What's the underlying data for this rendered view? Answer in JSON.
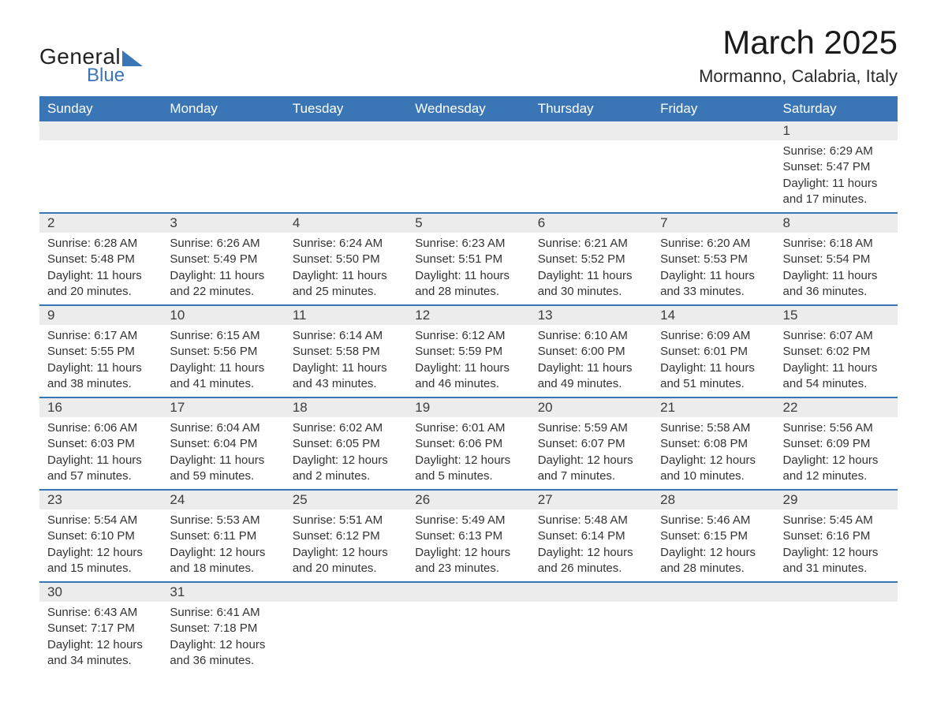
{
  "logo": {
    "general": "General",
    "blue": "Blue"
  },
  "title": "March 2025",
  "location": "Mormanno, Calabria, Italy",
  "colors": {
    "header_bg": "#3a76b6",
    "header_text": "#ffffff",
    "daynum_bg": "#ececec",
    "text": "#333333",
    "border": "#3a76b6",
    "page_bg": "#ffffff"
  },
  "typography": {
    "title_fontsize": 42,
    "location_fontsize": 22,
    "dayhead_fontsize": 17,
    "daynum_fontsize": 17,
    "body_fontsize": 15
  },
  "day_headers": [
    "Sunday",
    "Monday",
    "Tuesday",
    "Wednesday",
    "Thursday",
    "Friday",
    "Saturday"
  ],
  "weeks": [
    [
      {
        "n": "",
        "sr": "",
        "ss": "",
        "dl1": "",
        "dl2": ""
      },
      {
        "n": "",
        "sr": "",
        "ss": "",
        "dl1": "",
        "dl2": ""
      },
      {
        "n": "",
        "sr": "",
        "ss": "",
        "dl1": "",
        "dl2": ""
      },
      {
        "n": "",
        "sr": "",
        "ss": "",
        "dl1": "",
        "dl2": ""
      },
      {
        "n": "",
        "sr": "",
        "ss": "",
        "dl1": "",
        "dl2": ""
      },
      {
        "n": "",
        "sr": "",
        "ss": "",
        "dl1": "",
        "dl2": ""
      },
      {
        "n": "1",
        "sr": "Sunrise: 6:29 AM",
        "ss": "Sunset: 5:47 PM",
        "dl1": "Daylight: 11 hours",
        "dl2": "and 17 minutes."
      }
    ],
    [
      {
        "n": "2",
        "sr": "Sunrise: 6:28 AM",
        "ss": "Sunset: 5:48 PM",
        "dl1": "Daylight: 11 hours",
        "dl2": "and 20 minutes."
      },
      {
        "n": "3",
        "sr": "Sunrise: 6:26 AM",
        "ss": "Sunset: 5:49 PM",
        "dl1": "Daylight: 11 hours",
        "dl2": "and 22 minutes."
      },
      {
        "n": "4",
        "sr": "Sunrise: 6:24 AM",
        "ss": "Sunset: 5:50 PM",
        "dl1": "Daylight: 11 hours",
        "dl2": "and 25 minutes."
      },
      {
        "n": "5",
        "sr": "Sunrise: 6:23 AM",
        "ss": "Sunset: 5:51 PM",
        "dl1": "Daylight: 11 hours",
        "dl2": "and 28 minutes."
      },
      {
        "n": "6",
        "sr": "Sunrise: 6:21 AM",
        "ss": "Sunset: 5:52 PM",
        "dl1": "Daylight: 11 hours",
        "dl2": "and 30 minutes."
      },
      {
        "n": "7",
        "sr": "Sunrise: 6:20 AM",
        "ss": "Sunset: 5:53 PM",
        "dl1": "Daylight: 11 hours",
        "dl2": "and 33 minutes."
      },
      {
        "n": "8",
        "sr": "Sunrise: 6:18 AM",
        "ss": "Sunset: 5:54 PM",
        "dl1": "Daylight: 11 hours",
        "dl2": "and 36 minutes."
      }
    ],
    [
      {
        "n": "9",
        "sr": "Sunrise: 6:17 AM",
        "ss": "Sunset: 5:55 PM",
        "dl1": "Daylight: 11 hours",
        "dl2": "and 38 minutes."
      },
      {
        "n": "10",
        "sr": "Sunrise: 6:15 AM",
        "ss": "Sunset: 5:56 PM",
        "dl1": "Daylight: 11 hours",
        "dl2": "and 41 minutes."
      },
      {
        "n": "11",
        "sr": "Sunrise: 6:14 AM",
        "ss": "Sunset: 5:58 PM",
        "dl1": "Daylight: 11 hours",
        "dl2": "and 43 minutes."
      },
      {
        "n": "12",
        "sr": "Sunrise: 6:12 AM",
        "ss": "Sunset: 5:59 PM",
        "dl1": "Daylight: 11 hours",
        "dl2": "and 46 minutes."
      },
      {
        "n": "13",
        "sr": "Sunrise: 6:10 AM",
        "ss": "Sunset: 6:00 PM",
        "dl1": "Daylight: 11 hours",
        "dl2": "and 49 minutes."
      },
      {
        "n": "14",
        "sr": "Sunrise: 6:09 AM",
        "ss": "Sunset: 6:01 PM",
        "dl1": "Daylight: 11 hours",
        "dl2": "and 51 minutes."
      },
      {
        "n": "15",
        "sr": "Sunrise: 6:07 AM",
        "ss": "Sunset: 6:02 PM",
        "dl1": "Daylight: 11 hours",
        "dl2": "and 54 minutes."
      }
    ],
    [
      {
        "n": "16",
        "sr": "Sunrise: 6:06 AM",
        "ss": "Sunset: 6:03 PM",
        "dl1": "Daylight: 11 hours",
        "dl2": "and 57 minutes."
      },
      {
        "n": "17",
        "sr": "Sunrise: 6:04 AM",
        "ss": "Sunset: 6:04 PM",
        "dl1": "Daylight: 11 hours",
        "dl2": "and 59 minutes."
      },
      {
        "n": "18",
        "sr": "Sunrise: 6:02 AM",
        "ss": "Sunset: 6:05 PM",
        "dl1": "Daylight: 12 hours",
        "dl2": "and 2 minutes."
      },
      {
        "n": "19",
        "sr": "Sunrise: 6:01 AM",
        "ss": "Sunset: 6:06 PM",
        "dl1": "Daylight: 12 hours",
        "dl2": "and 5 minutes."
      },
      {
        "n": "20",
        "sr": "Sunrise: 5:59 AM",
        "ss": "Sunset: 6:07 PM",
        "dl1": "Daylight: 12 hours",
        "dl2": "and 7 minutes."
      },
      {
        "n": "21",
        "sr": "Sunrise: 5:58 AM",
        "ss": "Sunset: 6:08 PM",
        "dl1": "Daylight: 12 hours",
        "dl2": "and 10 minutes."
      },
      {
        "n": "22",
        "sr": "Sunrise: 5:56 AM",
        "ss": "Sunset: 6:09 PM",
        "dl1": "Daylight: 12 hours",
        "dl2": "and 12 minutes."
      }
    ],
    [
      {
        "n": "23",
        "sr": "Sunrise: 5:54 AM",
        "ss": "Sunset: 6:10 PM",
        "dl1": "Daylight: 12 hours",
        "dl2": "and 15 minutes."
      },
      {
        "n": "24",
        "sr": "Sunrise: 5:53 AM",
        "ss": "Sunset: 6:11 PM",
        "dl1": "Daylight: 12 hours",
        "dl2": "and 18 minutes."
      },
      {
        "n": "25",
        "sr": "Sunrise: 5:51 AM",
        "ss": "Sunset: 6:12 PM",
        "dl1": "Daylight: 12 hours",
        "dl2": "and 20 minutes."
      },
      {
        "n": "26",
        "sr": "Sunrise: 5:49 AM",
        "ss": "Sunset: 6:13 PM",
        "dl1": "Daylight: 12 hours",
        "dl2": "and 23 minutes."
      },
      {
        "n": "27",
        "sr": "Sunrise: 5:48 AM",
        "ss": "Sunset: 6:14 PM",
        "dl1": "Daylight: 12 hours",
        "dl2": "and 26 minutes."
      },
      {
        "n": "28",
        "sr": "Sunrise: 5:46 AM",
        "ss": "Sunset: 6:15 PM",
        "dl1": "Daylight: 12 hours",
        "dl2": "and 28 minutes."
      },
      {
        "n": "29",
        "sr": "Sunrise: 5:45 AM",
        "ss": "Sunset: 6:16 PM",
        "dl1": "Daylight: 12 hours",
        "dl2": "and 31 minutes."
      }
    ],
    [
      {
        "n": "30",
        "sr": "Sunrise: 6:43 AM",
        "ss": "Sunset: 7:17 PM",
        "dl1": "Daylight: 12 hours",
        "dl2": "and 34 minutes."
      },
      {
        "n": "31",
        "sr": "Sunrise: 6:41 AM",
        "ss": "Sunset: 7:18 PM",
        "dl1": "Daylight: 12 hours",
        "dl2": "and 36 minutes."
      },
      {
        "n": "",
        "sr": "",
        "ss": "",
        "dl1": "",
        "dl2": ""
      },
      {
        "n": "",
        "sr": "",
        "ss": "",
        "dl1": "",
        "dl2": ""
      },
      {
        "n": "",
        "sr": "",
        "ss": "",
        "dl1": "",
        "dl2": ""
      },
      {
        "n": "",
        "sr": "",
        "ss": "",
        "dl1": "",
        "dl2": ""
      },
      {
        "n": "",
        "sr": "",
        "ss": "",
        "dl1": "",
        "dl2": ""
      }
    ]
  ]
}
